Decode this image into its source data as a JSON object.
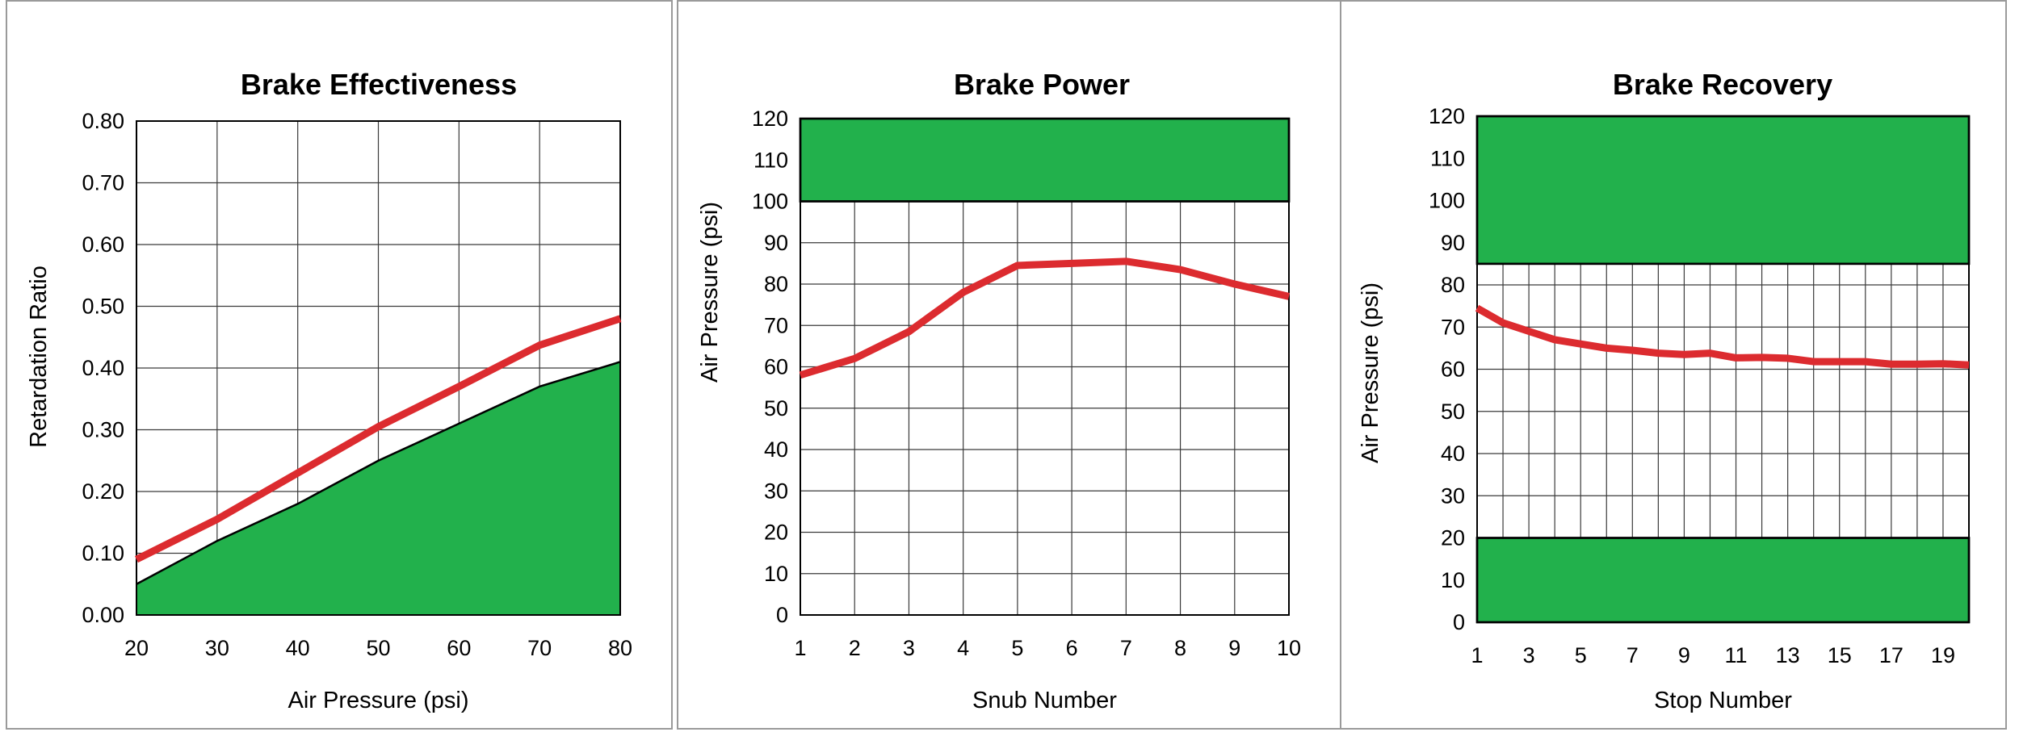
{
  "chart_data": [
    {
      "type": "line",
      "title": "Brake Effectiveness",
      "xlabel": "Air Pressure (psi)",
      "ylabel": "Retardation Ratio",
      "xlim": [
        20,
        80
      ],
      "ylim": [
        0,
        0.8
      ],
      "x_ticks": [
        "20",
        "30",
        "40",
        "50",
        "60",
        "70",
        "80"
      ],
      "y_ticks": [
        "0.00",
        "0.10",
        "0.20",
        "0.30",
        "0.40",
        "0.50",
        "0.60",
        "0.70",
        "0.80"
      ],
      "grid": true,
      "series": [
        {
          "role": "measured-line",
          "color": "#dc2b2f",
          "x": [
            20,
            30,
            40,
            50,
            60,
            70,
            80
          ],
          "y": [
            0.09,
            0.155,
            0.23,
            0.305,
            0.37,
            0.437,
            0.48
          ]
        },
        {
          "role": "minimum-requirement-area",
          "color": "#22b14c",
          "x": [
            20,
            30,
            40,
            50,
            60,
            70,
            80
          ],
          "y": [
            0.05,
            0.12,
            0.18,
            0.25,
            0.31,
            0.37,
            0.41
          ]
        }
      ]
    },
    {
      "type": "line",
      "title": "Brake Power",
      "xlabel": "Snub Number",
      "ylabel": "Air Pressure (psi)",
      "xlim": [
        1,
        10
      ],
      "ylim": [
        0,
        120
      ],
      "x_ticks": [
        "1",
        "2",
        "3",
        "4",
        "5",
        "6",
        "7",
        "8",
        "9",
        "10"
      ],
      "y_ticks": [
        "0",
        "10",
        "20",
        "30",
        "40",
        "50",
        "60",
        "70",
        "80",
        "90",
        "100",
        "110",
        "120"
      ],
      "grid": true,
      "bands": [
        {
          "color": "#22b14c",
          "y_from": 100,
          "y_to": 120
        }
      ],
      "series": [
        {
          "role": "measured-line",
          "color": "#dc2b2f",
          "x": [
            1,
            2,
            3,
            4,
            5,
            6,
            7,
            8,
            9,
            10
          ],
          "y": [
            58,
            62,
            68.5,
            78,
            84.5,
            85,
            85.5,
            83.5,
            80,
            77
          ]
        }
      ]
    },
    {
      "type": "line",
      "title": "Brake Recovery",
      "xlabel": "Stop Number",
      "ylabel": "Air Pressure (psi)",
      "xlim": [
        1,
        20
      ],
      "ylim": [
        0,
        120
      ],
      "x_ticks": [
        "1",
        "3",
        "5",
        "7",
        "9",
        "11",
        "13",
        "15",
        "17",
        "19"
      ],
      "x_tick_values": [
        1,
        3,
        5,
        7,
        9,
        11,
        13,
        15,
        17,
        19
      ],
      "y_ticks": [
        "0",
        "10",
        "20",
        "30",
        "40",
        "50",
        "60",
        "70",
        "80",
        "90",
        "100",
        "110",
        "120"
      ],
      "grid": true,
      "bands": [
        {
          "color": "#22b14c",
          "y_from": 85,
          "y_to": 120
        },
        {
          "color": "#22b14c",
          "y_from": 0,
          "y_to": 20
        }
      ],
      "series": [
        {
          "role": "measured-line",
          "color": "#dc2b2f",
          "x": [
            1,
            2,
            3,
            4,
            5,
            6,
            7,
            8,
            9,
            10,
            11,
            12,
            13,
            14,
            15,
            16,
            17,
            18,
            19,
            20
          ],
          "y": [
            74.5,
            71,
            69,
            67,
            66,
            65,
            64.5,
            63.8,
            63.5,
            63.8,
            62.7,
            62.8,
            62.6,
            61.8,
            61.8,
            61.8,
            61.2,
            61.2,
            61.3,
            61
          ]
        }
      ]
    }
  ]
}
